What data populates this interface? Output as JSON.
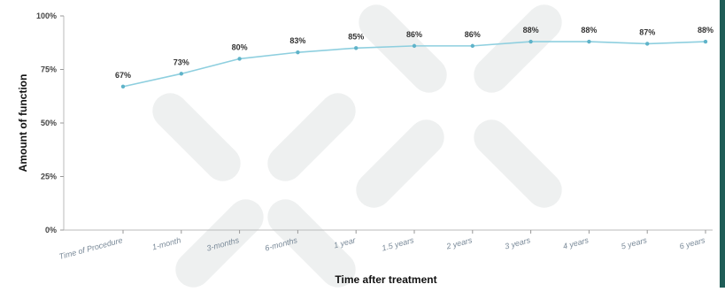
{
  "chart_data": {
    "type": "line",
    "categories": [
      "Time of Procedure",
      "1-month",
      "3-months",
      "6-months",
      "1 year",
      "1.5 years",
      "2 years",
      "3 years",
      "4 years",
      "5 years",
      "6 years"
    ],
    "values": [
      67,
      73,
      80,
      83,
      85,
      86,
      86,
      88,
      88,
      87,
      88
    ],
    "data_labels": [
      "67%",
      "73%",
      "80%",
      "83%",
      "85%",
      "86%",
      "86%",
      "88%",
      "88%",
      "87%",
      "88%"
    ],
    "title": "",
    "xlabel": "Time after treatment",
    "ylabel": "Amount of function",
    "ylim": [
      0,
      100
    ],
    "y_ticks": [
      "0%",
      "25%",
      "50%",
      "75%",
      "100%"
    ],
    "grid": false,
    "legend": "none",
    "line_color": "#8ecfdf",
    "point_color": "#5fb3c9"
  }
}
